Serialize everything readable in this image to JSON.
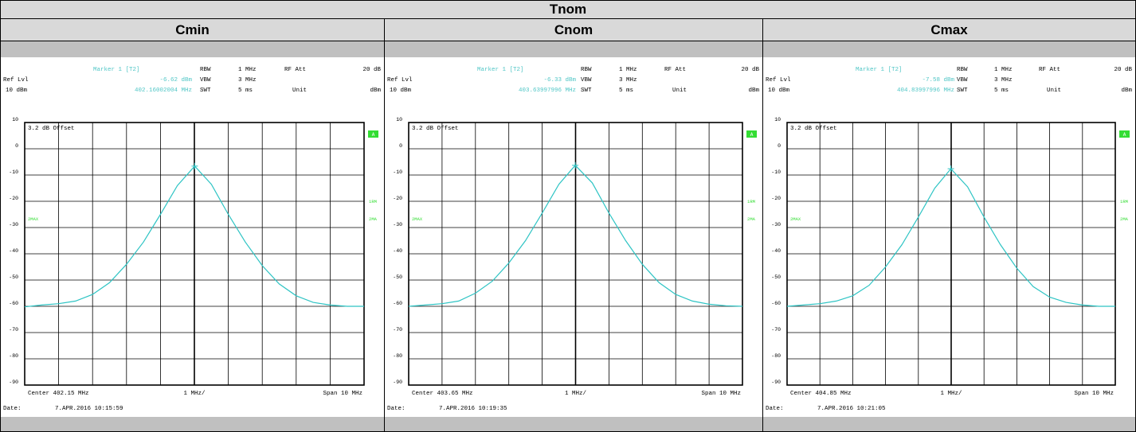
{
  "title": "Tnom",
  "columns": [
    "Cmin",
    "Cnom",
    "Cmax"
  ],
  "colors": {
    "trace": "#2ec4c4",
    "label": "#4fc6c6",
    "indicator": "#33dd33",
    "grid": "#000000",
    "bar": "#c0c0c0"
  },
  "chart_data": [
    {
      "type": "line",
      "title": "Cmin",
      "marker_label": "Marker 1 [T2]",
      "marker_level": "-6.62 dBm",
      "marker_freq": "402.16002004 MHz",
      "ref_lvl_label": "Ref Lvl",
      "ref_lvl_value": "10 dBm",
      "settings": {
        "RBW": "1 MHz",
        "VBW": "3 MHz",
        "SWT": "5 ms",
        "RF Att": "20 dB",
        "Unit": "dBm"
      },
      "offset_label": "3.2 dB Offset",
      "indicators": {
        "a": "A",
        "m1": "1RM",
        "max": "2MA",
        "left_max": "2MAX"
      },
      "x_center_label": "Center 402.15 MHz",
      "x_div_label": "1 MHz/",
      "x_span_label": "Span 10 MHz",
      "date_label": "Date:",
      "date": "7.APR.2016  10:15:59",
      "xlim": [
        397.15,
        407.15
      ],
      "ylim": [
        -90,
        10
      ],
      "yticks": [
        10,
        0,
        -10,
        -20,
        -30,
        -40,
        -50,
        -60,
        -70,
        -80,
        -90
      ],
      "ytick_labels": [
        "10",
        "0",
        "-10",
        "-20",
        "-30",
        "-40",
        "-50",
        "-60",
        "-70",
        "-80",
        "-90"
      ],
      "series": [
        {
          "x": [
            397.15,
            397.65,
            398.15,
            398.65,
            399.15,
            399.65,
            400.15,
            400.65,
            401.15,
            401.65,
            402.16,
            402.65,
            403.15,
            403.65,
            404.15,
            404.65,
            405.15,
            405.65,
            406.15,
            406.65,
            407.15
          ],
          "y": [
            -60.2,
            -59.5,
            -59.0,
            -58.0,
            -55.5,
            -51.0,
            -44.0,
            -35.5,
            -25.0,
            -14.0,
            -6.6,
            -13.5,
            -25.0,
            -35.5,
            -44.5,
            -51.5,
            -56.0,
            -58.5,
            -59.5,
            -60.0,
            -60.0
          ]
        }
      ]
    },
    {
      "type": "line",
      "title": "Cnom",
      "marker_label": "Marker 1 [T2]",
      "marker_level": "-6.33 dBm",
      "marker_freq": "403.63997996 MHz",
      "ref_lvl_label": "Ref Lvl",
      "ref_lvl_value": "10 dBm",
      "settings": {
        "RBW": "1 MHz",
        "VBW": "3 MHz",
        "SWT": "5 ms",
        "RF Att": "20 dB",
        "Unit": "dBm"
      },
      "offset_label": "3.2 dB Offset",
      "indicators": {
        "a": "A",
        "m1": "1RM",
        "max": "2MA",
        "left_max": "2MAX"
      },
      "x_center_label": "Center 403.65 MHz",
      "x_div_label": "1 MHz/",
      "x_span_label": "Span 10 MHz",
      "date_label": "Date:",
      "date": "7.APR.2016  10:19:35",
      "xlim": [
        398.65,
        408.65
      ],
      "ylim": [
        -90,
        10
      ],
      "yticks": [
        10,
        0,
        -10,
        -20,
        -30,
        -40,
        -50,
        -60,
        -70,
        -80,
        -90
      ],
      "ytick_labels": [
        "10",
        "0",
        "-10",
        "-20",
        "-30",
        "-40",
        "-50",
        "-60",
        "-70",
        "-80",
        "-90"
      ],
      "series": [
        {
          "x": [
            398.65,
            399.15,
            399.65,
            400.15,
            400.65,
            401.15,
            401.65,
            402.15,
            402.65,
            403.15,
            403.64,
            404.15,
            404.65,
            405.15,
            405.65,
            406.15,
            406.65,
            407.15,
            407.65,
            408.15,
            408.65
          ],
          "y": [
            -60.0,
            -59.5,
            -59.0,
            -58.0,
            -55.0,
            -50.5,
            -43.5,
            -35.0,
            -24.5,
            -13.5,
            -6.3,
            -13.0,
            -24.5,
            -35.0,
            -44.0,
            -51.0,
            -55.5,
            -58.0,
            -59.2,
            -59.8,
            -60.0
          ]
        }
      ]
    },
    {
      "type": "line",
      "title": "Cmax",
      "marker_label": "Marker 1 [T2]",
      "marker_level": "-7.58 dBm",
      "marker_freq": "404.83997996 MHz",
      "ref_lvl_label": "Ref Lvl",
      "ref_lvl_value": "10 dBm",
      "settings": {
        "RBW": "1 MHz",
        "VBW": "3 MHz",
        "SWT": "5 ms",
        "RF Att": "20 dB",
        "Unit": "dBm"
      },
      "offset_label": "3.2 dB Offset",
      "indicators": {
        "a": "A",
        "m1": "1RM",
        "max": "2MA",
        "left_max": "2MAX"
      },
      "x_center_label": "Center 404.85 MHz",
      "x_div_label": "1 MHz/",
      "x_span_label": "Span 10 MHz",
      "date_label": "Date:",
      "date": "7.APR.2016  10:21:05",
      "xlim": [
        399.85,
        409.85
      ],
      "ylim": [
        -90,
        10
      ],
      "yticks": [
        10,
        0,
        -10,
        -20,
        -30,
        -40,
        -50,
        -60,
        -70,
        -80,
        -90
      ],
      "ytick_labels": [
        "10",
        "0",
        "-10",
        "-20",
        "-30",
        "-40",
        "-50",
        "-60",
        "-70",
        "-80",
        "-90"
      ],
      "series": [
        {
          "x": [
            399.85,
            400.35,
            400.85,
            401.35,
            401.85,
            402.35,
            402.85,
            403.35,
            403.85,
            404.35,
            404.84,
            405.35,
            405.85,
            406.35,
            406.85,
            407.35,
            407.85,
            408.35,
            408.85,
            409.35,
            409.85
          ],
          "y": [
            -60.0,
            -59.5,
            -59.0,
            -58.0,
            -56.0,
            -52.0,
            -45.0,
            -36.5,
            -26.0,
            -15.0,
            -7.6,
            -14.5,
            -26.0,
            -36.5,
            -45.5,
            -52.5,
            -56.5,
            -58.5,
            -59.5,
            -60.0,
            -60.0
          ]
        }
      ]
    }
  ]
}
